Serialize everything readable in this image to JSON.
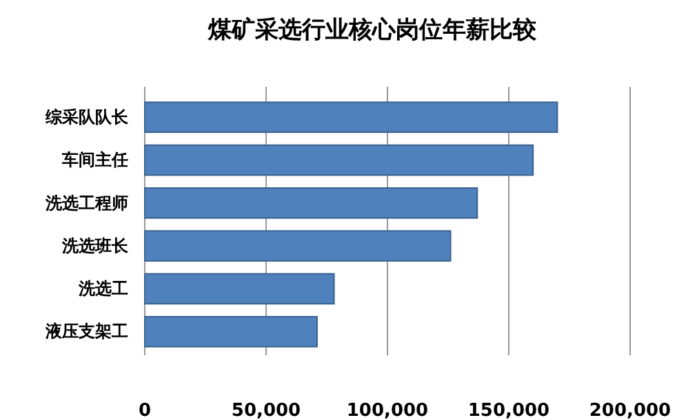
{
  "chart_data": {
    "type": "bar",
    "orientation": "horizontal",
    "title": "煤矿采选行业核心岗位年薪比较",
    "categories": [
      "综采队队长",
      "车间主任",
      "洗选工程师",
      "洗选班长",
      "洗选工",
      "液压支架工"
    ],
    "values": [
      170000,
      160000,
      137000,
      126000,
      78000,
      71000
    ],
    "color": "#4f81bd",
    "xlim": [
      0,
      200000
    ],
    "xticks": [
      {
        "value": 0,
        "label": "0"
      },
      {
        "value": 50000,
        "label": "50,000"
      },
      {
        "value": 100000,
        "label": "100,000"
      },
      {
        "value": 150000,
        "label": "150,000"
      },
      {
        "value": 200000,
        "label": "200,000"
      }
    ],
    "grid": "x"
  }
}
